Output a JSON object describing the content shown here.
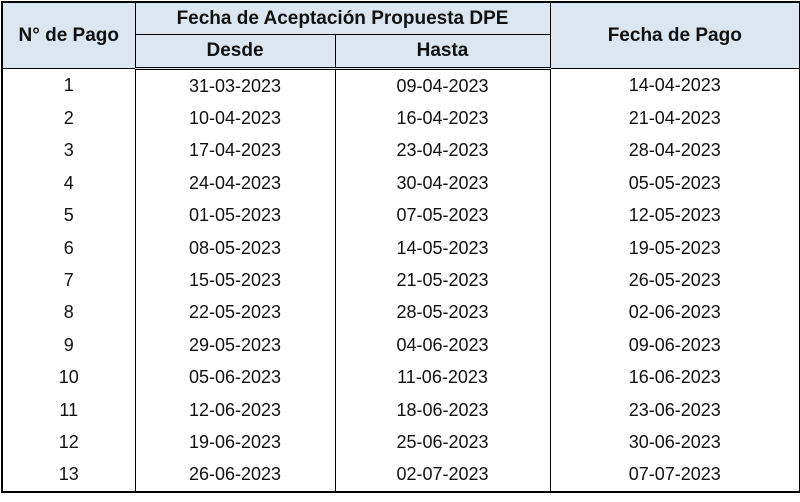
{
  "header": {
    "pago": "N° de Pago",
    "group": "Fecha de Aceptación Propuesta DPE",
    "desde": "Desde",
    "hasta": "Hasta",
    "fecha_pago": "Fecha de Pago"
  },
  "table": {
    "rows": [
      [
        "1",
        "31-03-2023",
        "09-04-2023",
        "14-04-2023"
      ],
      [
        "2",
        "10-04-2023",
        "16-04-2023",
        "21-04-2023"
      ],
      [
        "3",
        "17-04-2023",
        "23-04-2023",
        "28-04-2023"
      ],
      [
        "4",
        "24-04-2023",
        "30-04-2023",
        "05-05-2023"
      ],
      [
        "5",
        "01-05-2023",
        "07-05-2023",
        "12-05-2023"
      ],
      [
        "6",
        "08-05-2023",
        "14-05-2023",
        "19-05-2023"
      ],
      [
        "7",
        "15-05-2023",
        "21-05-2023",
        "26-05-2023"
      ],
      [
        "8",
        "22-05-2023",
        "28-05-2023",
        "02-06-2023"
      ],
      [
        "9",
        "29-05-2023",
        "04-06-2023",
        "09-06-2023"
      ],
      [
        "10",
        "05-06-2023",
        "11-06-2023",
        "16-06-2023"
      ],
      [
        "11",
        "12-06-2023",
        "18-06-2023",
        "23-06-2023"
      ],
      [
        "12",
        "19-06-2023",
        "25-06-2023",
        "30-06-2023"
      ],
      [
        "13",
        "26-06-2023",
        "02-07-2023",
        "07-07-2023"
      ]
    ]
  }
}
